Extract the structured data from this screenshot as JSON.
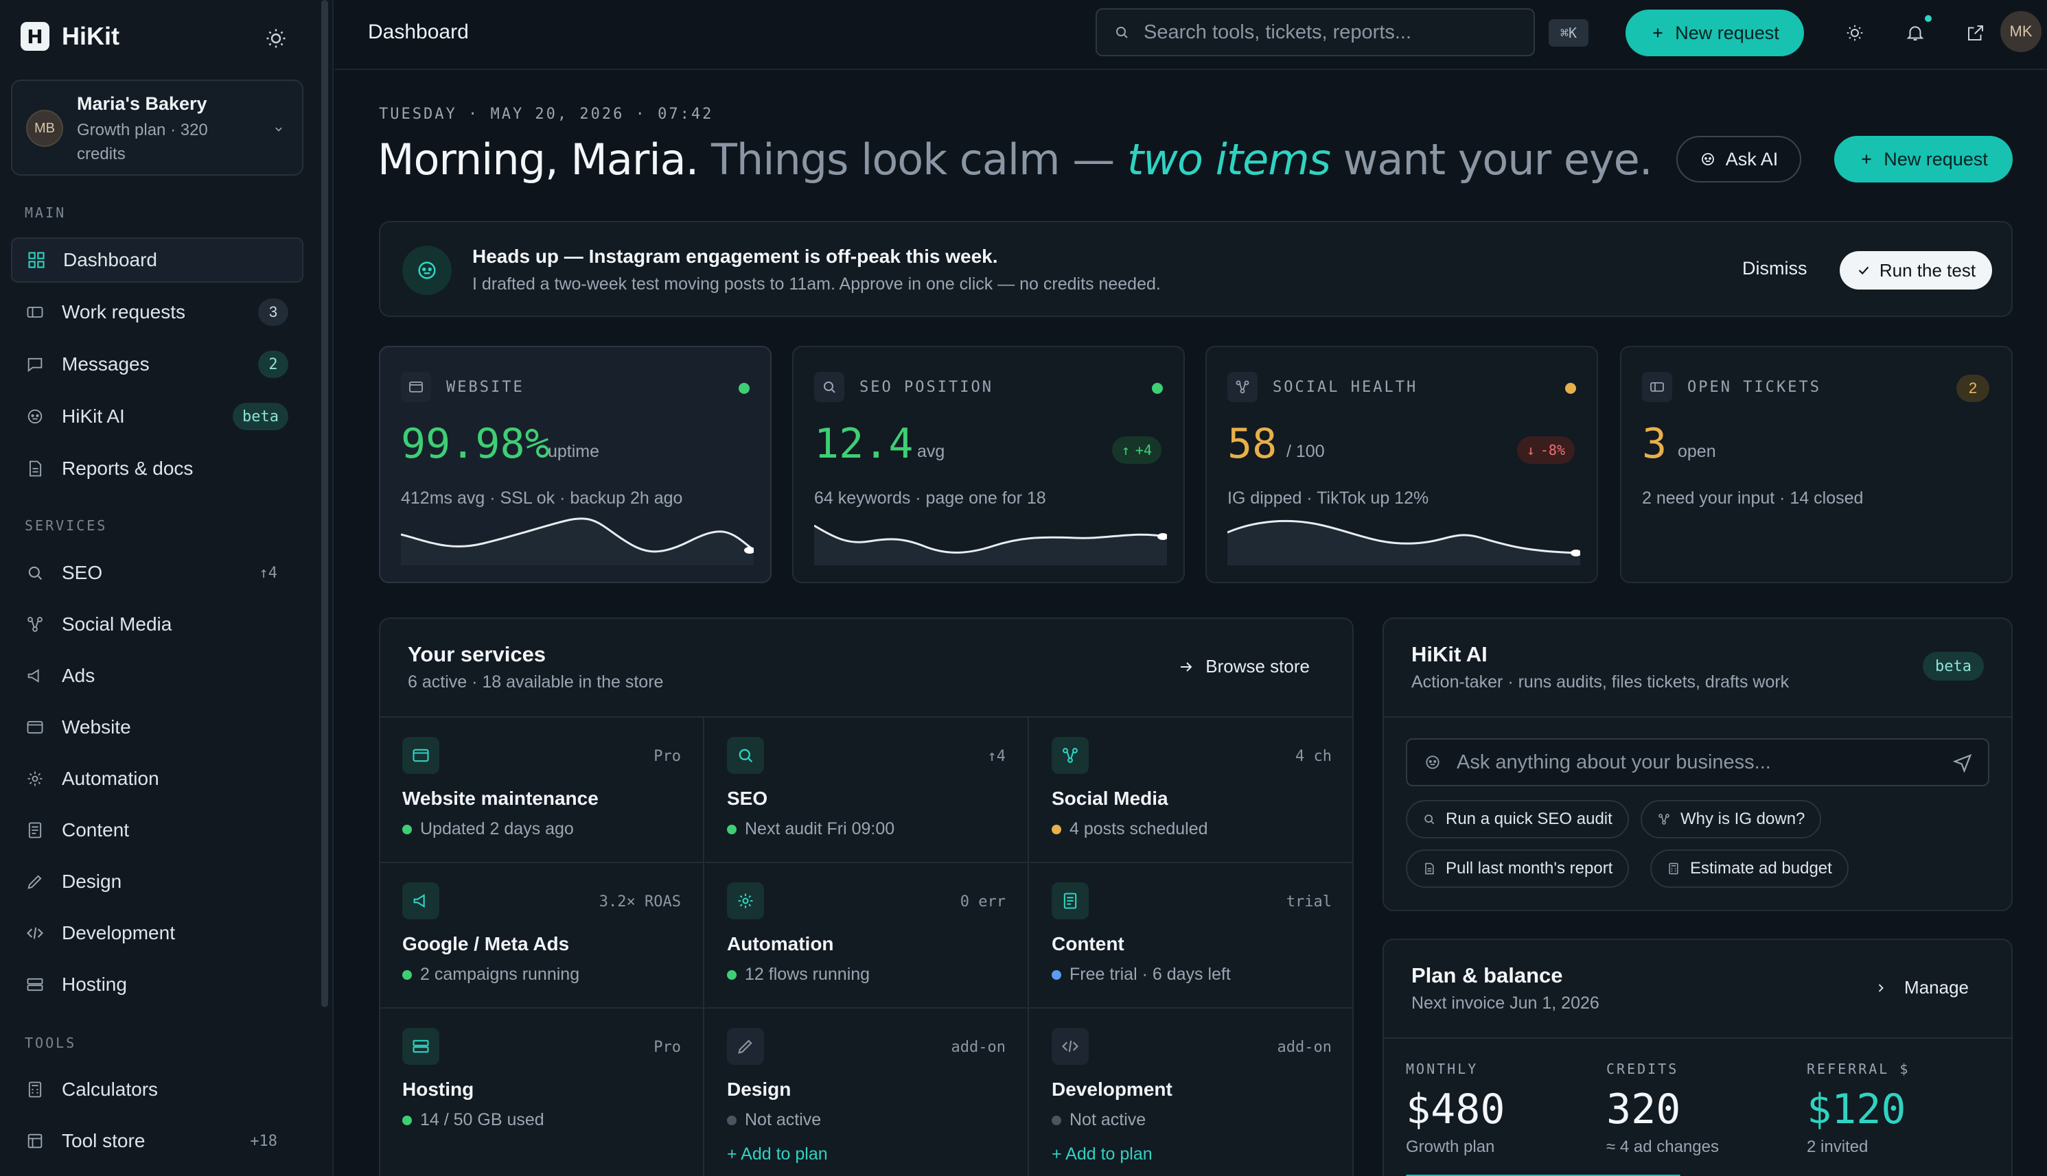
{
  "sidebar": {
    "brand": "HiKit",
    "logo_letter": "H",
    "org": {
      "initials": "MB",
      "name": "Maria's Bakery",
      "plan": "Growth plan · 320 credits"
    },
    "sections": {
      "main": "MAIN",
      "services": "SERVICES",
      "tools": "TOOLS"
    },
    "main_items": [
      {
        "label": "Dashboard",
        "icon": "grid-icon"
      },
      {
        "label": "Work requests",
        "badge": "3",
        "icon": "ticket-icon"
      },
      {
        "label": "Messages",
        "badge": "2",
        "icon": "message-icon"
      },
      {
        "label": "HiKit AI",
        "badge": "beta",
        "icon": "bot-icon"
      },
      {
        "label": "Reports & docs",
        "icon": "report-icon"
      }
    ],
    "service_items": [
      {
        "label": "SEO",
        "trail": "↑4",
        "icon": "search-icon"
      },
      {
        "label": "Social Media",
        "icon": "share-icon"
      },
      {
        "label": "Ads",
        "icon": "megaphone-icon"
      },
      {
        "label": "Website",
        "icon": "browser-icon"
      },
      {
        "label": "Automation",
        "icon": "gear-icon"
      },
      {
        "label": "Content",
        "icon": "document-icon"
      },
      {
        "label": "Design",
        "icon": "pen-icon"
      },
      {
        "label": "Development",
        "icon": "code-icon"
      },
      {
        "label": "Hosting",
        "icon": "server-icon"
      }
    ],
    "tool_items": [
      {
        "label": "Calculators",
        "icon": "calculator-icon"
      },
      {
        "label": "Tool store",
        "trail": "+18",
        "icon": "store-icon"
      }
    ]
  },
  "topbar": {
    "breadcrumb": "Dashboard",
    "search_placeholder": "Search tools, tickets, reports...",
    "shortcut": "⌘K",
    "new_request": "New request",
    "avatar": "MK"
  },
  "hero": {
    "date": "TUESDAY · MAY 20, 2026 · 07:42",
    "greeting": "Morning, Maria.",
    "dim1": "Things look calm —",
    "emph": "two items",
    "dim2": "want your eye.",
    "ask_ai": "Ask AI",
    "new_request": "New request"
  },
  "alert": {
    "title": "Heads up — Instagram engagement is off-peak this week.",
    "body": "I drafted a two-week test moving posts to 11am. Approve in one click — no credits needed.",
    "dismiss": "Dismiss",
    "run": "Run the test"
  },
  "metrics": [
    {
      "label": "WEBSITE",
      "value": "99.98%",
      "unit": "uptime",
      "sub": "412ms avg · SSL ok · backup 2h ago",
      "status_color": "#3ecf74",
      "value_color": "#3ecf74"
    },
    {
      "label": "SEO POSITION",
      "value": "12.4",
      "unit": "avg",
      "sub": "64 keywords · page one for 18",
      "delta": "+4",
      "status_color": "#3ecf74",
      "value_color": "#3ecf74"
    },
    {
      "label": "SOCIAL HEALTH",
      "value": "58",
      "unit": "/ 100",
      "sub": "IG dipped · TikTok up 12%",
      "delta": "-8%",
      "status_color": "#e7b04a",
      "value_color": "#e7b04a"
    },
    {
      "label": "OPEN TICKETS",
      "value": "3",
      "unit": "open",
      "sub": "2 need your input · 14 closed",
      "count": "2",
      "value_color": "#e7b04a"
    }
  ],
  "services": {
    "title": "Your services",
    "subtitle": "6 active · 18 available in the store",
    "browse": "Browse store",
    "add_label": "+ Add to plan",
    "items": [
      {
        "name": "Website maintenance",
        "tag": "Pro",
        "status": "Updated 2 days ago",
        "dot": "#3ecf74",
        "icon": "browser-icon"
      },
      {
        "name": "SEO",
        "tag": "↑4",
        "status": "Next audit Fri 09:00",
        "dot": "#3ecf74",
        "icon": "search-icon"
      },
      {
        "name": "Social Media",
        "tag": "4 ch",
        "status": "4 posts scheduled",
        "dot": "#e7b04a",
        "icon": "share-icon"
      },
      {
        "name": "Google / Meta Ads",
        "tag": "3.2× ROAS",
        "status": "2 campaigns running",
        "dot": "#3ecf74",
        "icon": "megaphone-icon"
      },
      {
        "name": "Automation",
        "tag": "0 err",
        "status": "12 flows running",
        "dot": "#3ecf74",
        "icon": "gear-icon"
      },
      {
        "name": "Content",
        "tag": "trial",
        "status": "Free trial · 6 days left",
        "dot": "#5b9cf0",
        "icon": "document-icon"
      },
      {
        "name": "Hosting",
        "tag": "Pro",
        "status": "14 / 50 GB used",
        "dot": "#3ecf74",
        "icon": "server-icon"
      },
      {
        "name": "Design",
        "tag": "add-on",
        "status": "Not active",
        "dot": "#4b5561",
        "icon": "pen-icon"
      },
      {
        "name": "Development",
        "tag": "add-on",
        "status": "Not active",
        "dot": "#4b5561",
        "icon": "code-icon"
      }
    ]
  },
  "ai": {
    "title": "HiKit AI",
    "subtitle": "Action-taker · runs audits, files tickets, drafts work",
    "badge": "beta",
    "placeholder": "Ask anything about your business...",
    "chips": [
      "Run a quick SEO audit",
      "Why is IG down?",
      "Pull last month's report",
      "Estimate ad budget"
    ]
  },
  "plan": {
    "title": "Plan & balance",
    "subtitle": "Next invoice Jun 1, 2026",
    "manage": "Manage",
    "stats": [
      {
        "key": "MONTHLY",
        "value": "$480",
        "desc": "Growth plan",
        "color": "#f3f6f9"
      },
      {
        "key": "CREDITS",
        "value": "320",
        "desc": "≈ 4 ad changes",
        "color": "#f3f6f9"
      },
      {
        "key": "REFERRAL $",
        "value": "$120",
        "desc": "2 invited",
        "color": "#2fd3c2"
      }
    ]
  }
}
